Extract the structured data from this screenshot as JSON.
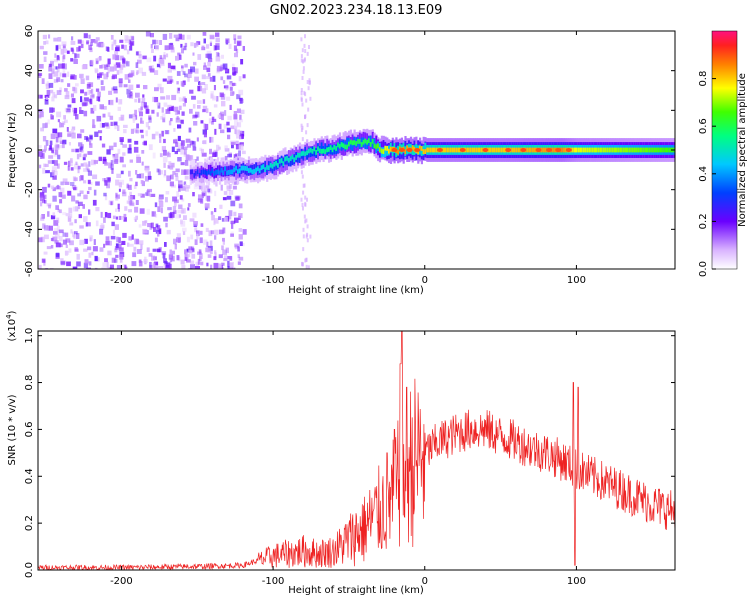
{
  "title": "GN02.2023.234.18.13.E09",
  "chart_data": [
    {
      "type": "heatmap",
      "xlabel": "Height of straight line (km)",
      "ylabel": "Frequency (Hz)",
      "xlim": [
        -255,
        165
      ],
      "ylim": [
        -60,
        60
      ],
      "x_ticks": [
        -200,
        -100,
        0,
        100
      ],
      "x_tick_labels": [
        "-200",
        "-100",
        "0",
        "100"
      ],
      "y_ticks": [
        -60,
        -40,
        -20,
        0,
        20,
        40,
        60
      ],
      "y_tick_labels": [
        "-60",
        "-40",
        "-20",
        "0",
        "20",
        "40",
        "60"
      ],
      "colorbar": {
        "label": "Normalized spectral amplitude",
        "range": [
          0.0,
          1.0
        ],
        "ticks": [
          0.0,
          0.2,
          0.4,
          0.6,
          0.8
        ],
        "tick_labels": [
          "0.0",
          "0.2",
          "0.4",
          "0.6",
          "0.8"
        ]
      },
      "ridge": {
        "x": [
          -155,
          -140,
          -120,
          -110,
          -100,
          -90,
          -80,
          -70,
          -60,
          -50,
          -40,
          -35,
          -30,
          -20,
          0,
          50,
          90,
          100,
          165
        ],
        "freq": [
          -12,
          -11,
          -10,
          -10,
          -8,
          -5,
          -2,
          0,
          1,
          3,
          4,
          4,
          0,
          0,
          0,
          0,
          0,
          0,
          0
        ],
        "amplitude": [
          0.25,
          0.35,
          0.45,
          0.45,
          0.5,
          0.5,
          0.5,
          0.55,
          0.55,
          0.6,
          0.6,
          0.6,
          0.7,
          0.85,
          0.8,
          0.8,
          0.85,
          0.75,
          0.65
        ]
      },
      "noise_region_x": [
        -255,
        -120
      ]
    },
    {
      "type": "line",
      "xlabel": "Height of straight line (km)",
      "ylabel": "SNR (10 * v/v)",
      "y_multiplier_label": "(x10",
      "y_multiplier_exp": "4",
      "y_multiplier_close": ")",
      "xlim": [
        -255,
        165
      ],
      "ylim": [
        0.0,
        1.02
      ],
      "x_ticks": [
        -200,
        -100,
        0,
        100
      ],
      "x_tick_labels": [
        "-200",
        "-100",
        "0",
        "100"
      ],
      "y_ticks": [
        0.0,
        0.2,
        0.4,
        0.6,
        0.8,
        1.0
      ],
      "y_tick_labels": [
        "0.0",
        "0.2",
        "0.4",
        "0.6",
        "0.8",
        "1.0"
      ],
      "series_color": "#ee2222",
      "envelope": {
        "x": [
          -255,
          -200,
          -150,
          -120,
          -110,
          -100,
          -90,
          -80,
          -70,
          -60,
          -50,
          -40,
          -30,
          -20,
          -15,
          -10,
          0,
          10,
          20,
          30,
          40,
          50,
          60,
          70,
          80,
          90,
          100,
          110,
          120,
          130,
          140,
          150,
          165
        ],
        "y": [
          0.01,
          0.01,
          0.015,
          0.02,
          0.04,
          0.06,
          0.07,
          0.08,
          0.07,
          0.08,
          0.13,
          0.18,
          0.25,
          0.32,
          0.4,
          0.45,
          0.5,
          0.55,
          0.58,
          0.6,
          0.6,
          0.57,
          0.55,
          0.52,
          0.5,
          0.47,
          0.43,
          0.4,
          0.37,
          0.34,
          0.31,
          0.28,
          0.25
        ]
      },
      "spikes": [
        {
          "x": -15,
          "y": 1.02
        },
        {
          "x": -16,
          "y": 0.88
        },
        {
          "x": -12,
          "y": 0.78
        },
        {
          "x": -20,
          "y": 0.6
        },
        {
          "x": -25,
          "y": 0.5
        },
        {
          "x": 98,
          "y": 0.8
        },
        {
          "x": 101,
          "y": 0.78
        },
        {
          "x": 99,
          "y": 0.02
        }
      ]
    }
  ]
}
